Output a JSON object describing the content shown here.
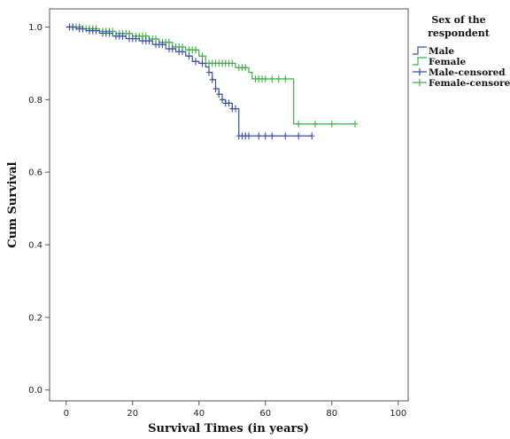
{
  "chart_data": {
    "type": "line",
    "title": "",
    "xlabel": "Survival Times (in years)",
    "ylabel": "Cum Survival",
    "xlim": [
      -5,
      103
    ],
    "ylim": [
      -0.03,
      1.05
    ],
    "xticks": [
      0,
      20,
      40,
      60,
      80,
      100
    ],
    "yticks": [
      0.0,
      0.2,
      0.4,
      0.6,
      0.8,
      1.0
    ],
    "grid": false,
    "legend": {
      "title_lines": [
        "Sex of the",
        "respondent"
      ],
      "position": "top-right",
      "entries": [
        "Male",
        "Female",
        "Male-censored",
        "Female-censored"
      ]
    },
    "colors": {
      "male": "#3a4fa3",
      "female": "#3fae49"
    },
    "series": [
      {
        "name": "Male",
        "step": true,
        "points": [
          [
            0,
            1.0
          ],
          [
            3,
            0.995
          ],
          [
            6,
            0.99
          ],
          [
            10,
            0.983
          ],
          [
            14,
            0.975
          ],
          [
            18,
            0.968
          ],
          [
            22,
            0.962
          ],
          [
            26,
            0.952
          ],
          [
            30,
            0.94
          ],
          [
            33,
            0.932
          ],
          [
            36,
            0.92
          ],
          [
            38,
            0.905
          ],
          [
            40,
            0.9
          ],
          [
            42,
            0.89
          ],
          [
            43,
            0.875
          ],
          [
            44,
            0.855
          ],
          [
            45,
            0.83
          ],
          [
            46,
            0.815
          ],
          [
            47,
            0.8
          ],
          [
            48,
            0.79
          ],
          [
            49,
            0.79
          ],
          [
            50,
            0.775
          ],
          [
            51,
            0.775
          ],
          [
            52,
            0.7
          ],
          [
            74,
            0.7
          ]
        ],
        "censored_x": [
          1,
          2,
          4,
          5,
          7,
          8,
          9,
          11,
          12,
          13,
          15,
          16,
          17,
          19,
          20,
          21,
          23,
          24,
          25,
          27,
          28,
          29,
          31,
          32,
          34,
          35,
          37,
          39,
          41,
          43,
          44,
          45,
          46,
          47,
          48,
          49,
          50,
          51,
          52,
          53,
          54,
          55,
          58,
          60,
          62,
          66,
          70,
          74
        ]
      },
      {
        "name": "Female",
        "step": true,
        "points": [
          [
            0,
            1.0
          ],
          [
            5,
            0.995
          ],
          [
            10,
            0.988
          ],
          [
            15,
            0.982
          ],
          [
            20,
            0.975
          ],
          [
            25,
            0.967
          ],
          [
            28,
            0.958
          ],
          [
            32,
            0.945
          ],
          [
            36,
            0.937
          ],
          [
            40,
            0.92
          ],
          [
            42,
            0.9
          ],
          [
            50,
            0.9
          ],
          [
            51,
            0.888
          ],
          [
            55,
            0.875
          ],
          [
            56,
            0.857
          ],
          [
            68,
            0.857
          ],
          [
            68.5,
            0.733
          ],
          [
            87,
            0.733
          ]
        ],
        "censored_x": [
          1,
          2,
          3,
          4,
          6,
          7,
          8,
          9,
          11,
          12,
          13,
          14,
          16,
          17,
          18,
          19,
          21,
          22,
          23,
          24,
          26,
          27,
          29,
          30,
          31,
          33,
          34,
          35,
          37,
          38,
          39,
          41,
          43,
          44,
          45,
          46,
          47,
          48,
          49,
          50,
          52,
          53,
          54,
          57,
          58,
          59,
          60,
          62,
          64,
          66,
          70,
          75,
          80,
          87
        ]
      }
    ]
  }
}
